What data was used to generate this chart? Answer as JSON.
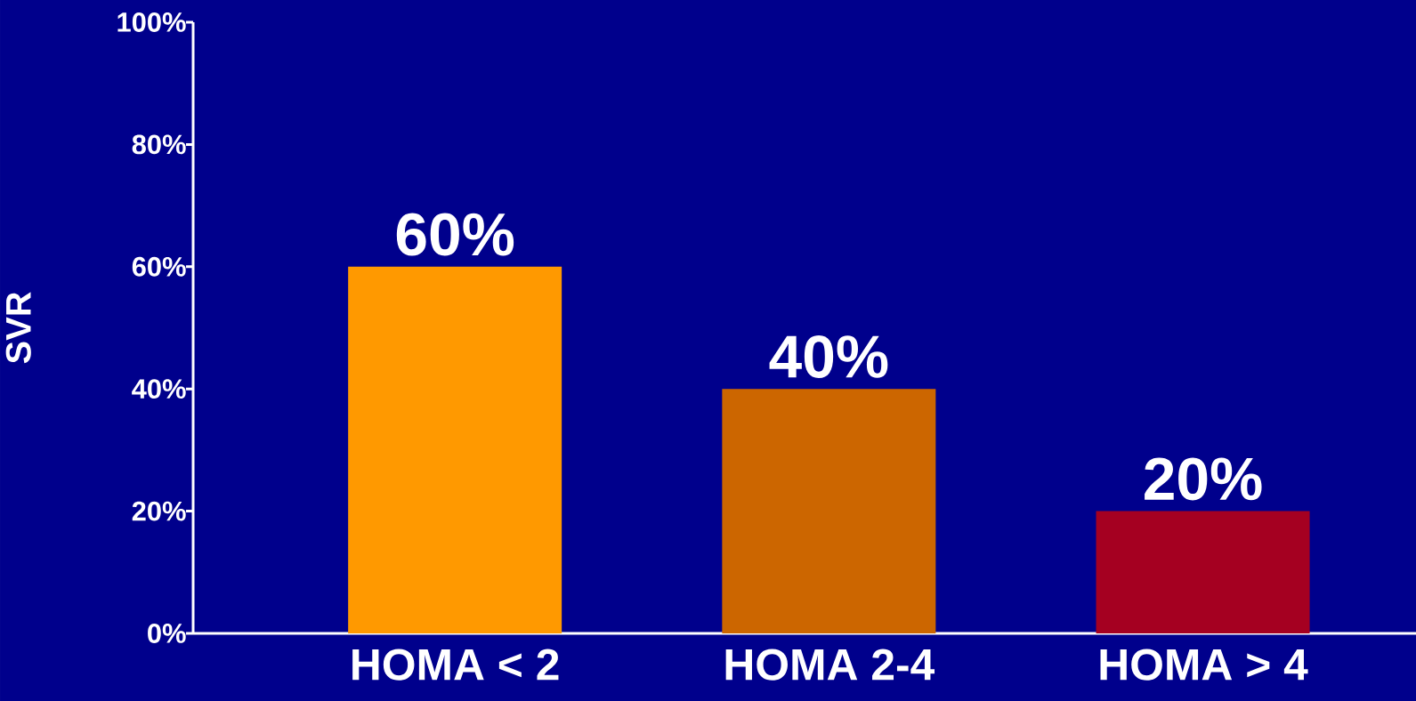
{
  "chart_data": {
    "type": "bar",
    "ylabel": "SVR",
    "categories": [
      "HOMA < 2",
      "HOMA 2-4",
      "HOMA > 4"
    ],
    "values": [
      60,
      40,
      20
    ],
    "colors": [
      "#ff9900",
      "#cc6600",
      "#a50021"
    ],
    "value_labels": [
      "60%",
      "40%",
      "20%"
    ],
    "ylim": [
      0,
      100
    ],
    "yticks": [
      {
        "value": 0,
        "label": "0%"
      },
      {
        "value": 20,
        "label": "20%"
      },
      {
        "value": 40,
        "label": "40%"
      },
      {
        "value": 60,
        "label": "60%"
      },
      {
        "value": 80,
        "label": "80%"
      },
      {
        "value": 100,
        "label": "100%"
      }
    ]
  }
}
